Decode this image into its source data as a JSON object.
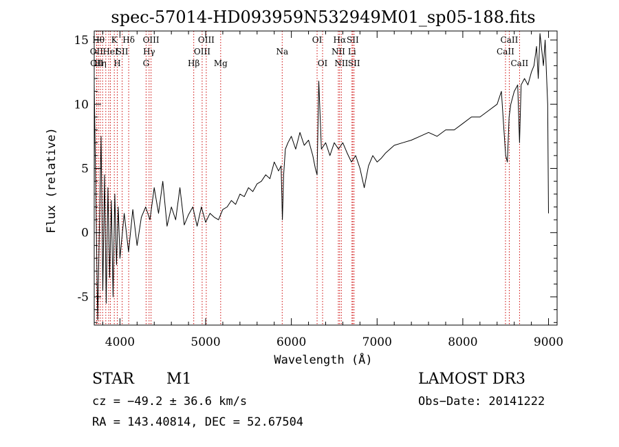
{
  "chart_data": {
    "type": "line",
    "title": "spec-57014-HD093959N532949M01_sp05-188.fits",
    "xlabel": "Wavelength (Å)",
    "ylabel": "Flux (relative)",
    "xlim": [
      3700,
      9100
    ],
    "ylim": [
      -7.2,
      15.7
    ],
    "x_ticks": [
      4000,
      5000,
      6000,
      7000,
      8000,
      9000
    ],
    "y_ticks": [
      -5,
      0,
      5,
      10,
      15
    ],
    "grid": false,
    "line_color": "#000000",
    "marker_color": "#cc0000",
    "series": [
      {
        "x": [
          3700,
          3740,
          3780,
          3800,
          3820,
          3840,
          3860,
          3880,
          3900,
          3920,
          3940,
          3960,
          3980,
          4000,
          4050,
          4100,
          4150,
          4200,
          4250,
          4300,
          4350,
          4400,
          4450,
          4500,
          4550,
          4600,
          4650,
          4700,
          4750,
          4800,
          4850,
          4900,
          4950,
          5000,
          5050,
          5100,
          5150,
          5200,
          5250,
          5300,
          5350,
          5400,
          5450,
          5500,
          5550,
          5600,
          5650,
          5700,
          5750,
          5800,
          5850,
          5880,
          5895,
          5910,
          5930,
          5960,
          6000,
          6050,
          6100,
          6150,
          6200,
          6250,
          6280,
          6300,
          6320,
          6350,
          6400,
          6450,
          6500,
          6550,
          6600,
          6650,
          6700,
          6750,
          6800,
          6850,
          6900,
          6950,
          7000,
          7050,
          7100,
          7150,
          7200,
          7300,
          7400,
          7500,
          7600,
          7700,
          7800,
          7900,
          8000,
          8100,
          8200,
          8300,
          8400,
          8450,
          8480,
          8500,
          8520,
          8540,
          8560,
          8600,
          8640,
          8662,
          8680,
          8720,
          8760,
          8800,
          8830,
          8860,
          8880,
          8900,
          8940,
          8960,
          8990,
          9000
        ],
        "y": [
          11.5,
          -6.8,
          7.5,
          -4.5,
          4.5,
          -5.5,
          3.5,
          -3.5,
          2.5,
          -5,
          3,
          -2.5,
          2,
          -2,
          1.5,
          -1.5,
          1.8,
          -1,
          1.2,
          2,
          1,
          3.5,
          1.5,
          4,
          0.5,
          2,
          1,
          3.5,
          0.6,
          1.4,
          2,
          0.5,
          2,
          0.8,
          1.5,
          1.2,
          1,
          1.8,
          2,
          2.5,
          2.2,
          3,
          2.8,
          3.5,
          3.2,
          3.8,
          4,
          4.5,
          4.2,
          5.5,
          4.8,
          5.2,
          1,
          4.5,
          6.5,
          7,
          7.5,
          6.5,
          7.8,
          6.8,
          7.2,
          6,
          5,
          4.5,
          11.8,
          6.5,
          7,
          6,
          7,
          6.5,
          7,
          6.2,
          5.5,
          6,
          5,
          3.5,
          5.2,
          6,
          5.5,
          5.8,
          6.2,
          6.5,
          6.8,
          7,
          7.2,
          7.5,
          7.8,
          7.5,
          8,
          8,
          8.5,
          9,
          9,
          9.5,
          10,
          11,
          8,
          6,
          5.5,
          9,
          10,
          11,
          11.5,
          7,
          11.5,
          12,
          11.5,
          12.5,
          13,
          14.5,
          12,
          15.5,
          13,
          15,
          10,
          1.5
        ]
      }
    ],
    "line_markers": [
      {
        "x": 3727,
        "label": "OII",
        "row": 2
      },
      {
        "x": 3730,
        "label": "OII",
        "row": 3
      },
      {
        "x": 3750,
        "label": "Hθ",
        "row": 1
      },
      {
        "x": 3771,
        "label": "Hη",
        "row": 3
      },
      {
        "x": 3798,
        "label": "",
        "row": 0
      },
      {
        "x": 3835,
        "label": "",
        "row": 0
      },
      {
        "x": 3869,
        "label": "",
        "row": 0
      },
      {
        "x": 3889,
        "label": "HeI",
        "row": 2
      },
      {
        "x": 3934,
        "label": "K",
        "row": 1
      },
      {
        "x": 3969,
        "label": "H",
        "row": 3
      },
      {
        "x": 4026,
        "label": "SII",
        "row": 2
      },
      {
        "x": 4102,
        "label": "Hδ",
        "row": 1
      },
      {
        "x": 4305,
        "label": "G",
        "row": 3
      },
      {
        "x": 4340,
        "label": "Hγ",
        "row": 2
      },
      {
        "x": 4363,
        "label": "OIII",
        "row": 1
      },
      {
        "x": 4861,
        "label": "Hβ",
        "row": 3
      },
      {
        "x": 4959,
        "label": "OIII",
        "row": 2
      },
      {
        "x": 5007,
        "label": "OIII",
        "row": 1
      },
      {
        "x": 5175,
        "label": "Mg",
        "row": 3
      },
      {
        "x": 5893,
        "label": "Na",
        "row": 2
      },
      {
        "x": 6300,
        "label": "OI",
        "row": 1
      },
      {
        "x": 6364,
        "label": "OI",
        "row": 3
      },
      {
        "x": 6548,
        "label": "NII",
        "row": 2
      },
      {
        "x": 6563,
        "label": "Hα",
        "row": 1
      },
      {
        "x": 6583,
        "label": "NII",
        "row": 3
      },
      {
        "x": 6707,
        "label": "Li",
        "row": 2
      },
      {
        "x": 6716,
        "label": "SII",
        "row": 1
      },
      {
        "x": 6731,
        "label": "SII",
        "row": 3
      },
      {
        "x": 8498,
        "label": "CaII",
        "row": 2
      },
      {
        "x": 8542,
        "label": "CaII",
        "row": 1
      },
      {
        "x": 8662,
        "label": "CaII",
        "row": 3
      }
    ]
  },
  "info": {
    "object_class": "STAR",
    "subclass": "M1",
    "survey": "LAMOST DR3",
    "cz": "cz = −49.2 ± 36.6 km/s",
    "obs_date": "Obs−Date: 20141222",
    "coords": "RA = 143.40814, DEC =  52.67504"
  }
}
